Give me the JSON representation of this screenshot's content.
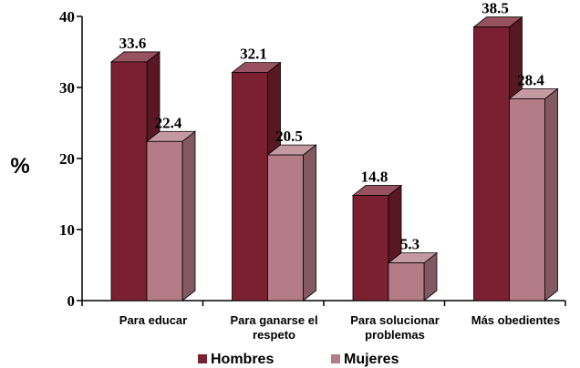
{
  "chart_data": {
    "type": "bar",
    "title": "",
    "xlabel": "",
    "ylabel": "%",
    "ylim": [
      0,
      40
    ],
    "yticks": [
      "0",
      "10",
      "20",
      "30",
      "40"
    ],
    "grid": false,
    "legend_position": "bottom",
    "categories": [
      [
        "Para educar"
      ],
      [
        "Para ganarse el",
        "respeto"
      ],
      [
        "Para solucionar",
        "problemas"
      ],
      [
        "Más obedientes"
      ]
    ],
    "series": [
      {
        "name": "Hombres",
        "values": [
          33.6,
          32.1,
          14.8,
          38.5
        ],
        "labels": [
          "33.6",
          "32.1",
          "14.8",
          "38.5"
        ],
        "color": "#7B2030"
      },
      {
        "name": "Mujeres",
        "values": [
          22.4,
          20.5,
          5.3,
          28.4
        ],
        "labels": [
          "22.4",
          "20.5",
          "5.3",
          "28.4"
        ],
        "color": "#B47C86"
      }
    ]
  }
}
